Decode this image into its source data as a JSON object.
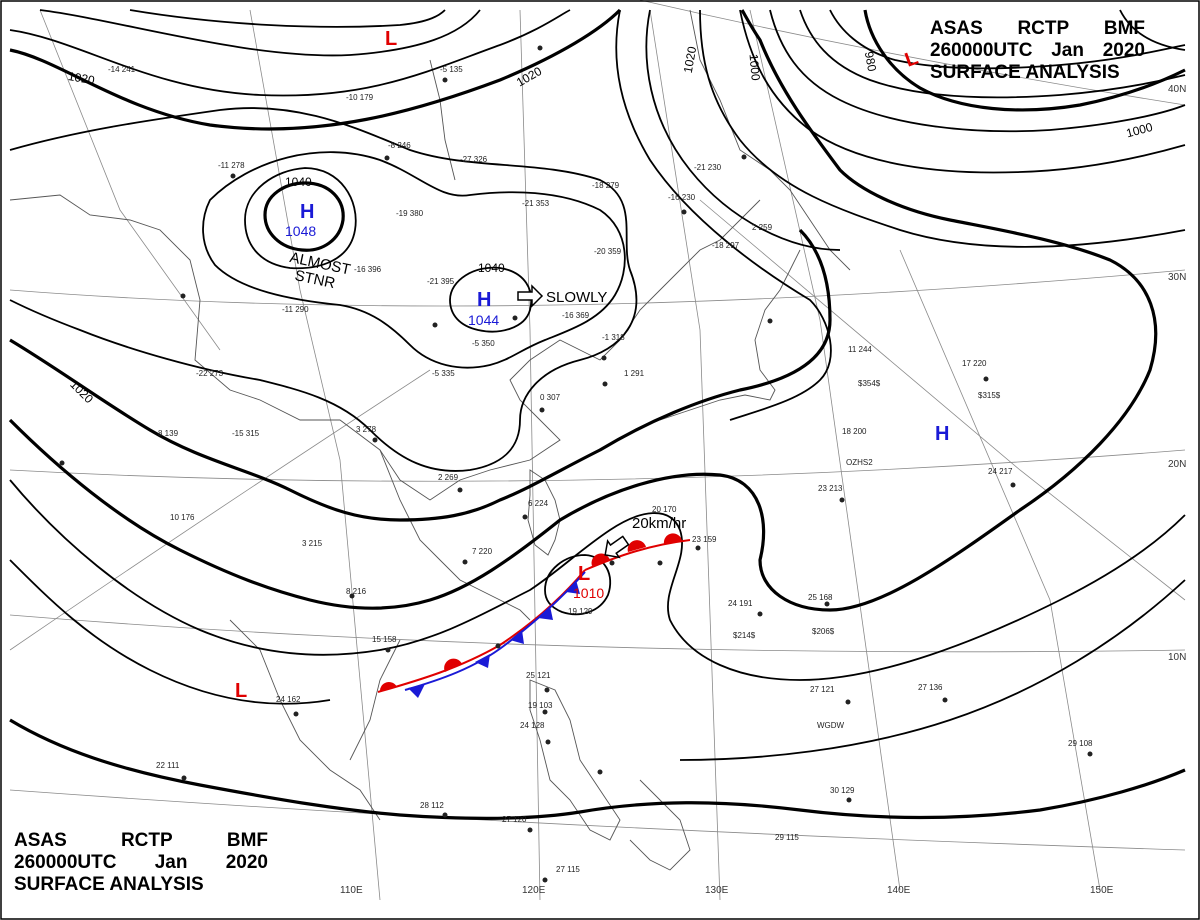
{
  "header": {
    "agency_line": [
      "ASAS",
      "RCTP",
      "BMF"
    ],
    "time_line": [
      "260000UTC",
      "Jan",
      "2020"
    ],
    "title_line": "SURFACE ANALYSIS"
  },
  "pressure_centers": [
    {
      "type": "H",
      "value": "1048",
      "color": "#1a1ad6",
      "note": "ALMOST STNR"
    },
    {
      "type": "H",
      "value": "1044",
      "color": "#1a1ad6",
      "motion": "SLOWLY"
    },
    {
      "type": "L",
      "value": "1010",
      "color": "#e00000",
      "motion": "20km/hr"
    },
    {
      "type": "H",
      "value": "",
      "color": "#1a1ad6"
    },
    {
      "type": "L",
      "value": "",
      "color": "#e00000"
    },
    {
      "type": "L",
      "value": "",
      "color": "#e00000"
    },
    {
      "type": "L",
      "value": "",
      "color": "#e00000"
    }
  ],
  "isobar_labels": [
    "1020",
    "1020",
    "1020",
    "1020",
    "1040",
    "1040",
    "1000",
    "1000",
    "980"
  ],
  "lat_labels": [
    "40N",
    "30N",
    "20N",
    "10N"
  ],
  "lon_labels": [
    "110E",
    "120E",
    "130E",
    "140E",
    "150E"
  ],
  "annotations": {
    "almost_stnr_1": "ALMOST",
    "almost_stnr_2": "STNR",
    "slowly": "SLOWLY",
    "speed": "20km/hr"
  },
  "station_plots": [
    {
      "t": "-14",
      "p": "241"
    },
    {
      "t": "-5",
      "p": "135"
    },
    {
      "t": "-10",
      "p": "179"
    },
    {
      "t": "-8",
      "p": "246"
    },
    {
      "t": "-27",
      "p": "326"
    },
    {
      "t": "-11",
      "p": "278"
    },
    {
      "t": "-21",
      "p": "353"
    },
    {
      "t": "-18",
      "p": "279"
    },
    {
      "t": "-19",
      "p": "380"
    },
    {
      "t": "-16",
      "p": "396"
    },
    {
      "t": "-20",
      "p": "359"
    },
    {
      "t": "-21",
      "p": "395"
    },
    {
      "t": "-11",
      "p": "290"
    },
    {
      "t": "-5",
      "p": "350"
    },
    {
      "t": "-16",
      "p": "369"
    },
    {
      "t": "-22",
      "p": "273"
    },
    {
      "t": "-5",
      "p": "335"
    },
    {
      "t": "-15",
      "p": "315"
    },
    {
      "t": "-1",
      "p": "318"
    },
    {
      "t": "1",
      "p": "291"
    },
    {
      "t": "0",
      "p": "307"
    },
    {
      "t": "3",
      "p": "278"
    },
    {
      "t": "2",
      "p": "269"
    },
    {
      "t": "8",
      "p": "139"
    },
    {
      "t": "10",
      "p": "176"
    },
    {
      "t": "6",
      "p": "224"
    },
    {
      "t": "7",
      "p": "220"
    },
    {
      "t": "3",
      "p": "215"
    },
    {
      "t": "8",
      "p": "216"
    },
    {
      "t": "15",
      "p": "158"
    },
    {
      "t": "20",
      "p": "170"
    },
    {
      "t": "23",
      "p": "159"
    },
    {
      "t": "19",
      "p": "129"
    },
    {
      "t": "24",
      "p": "191"
    },
    {
      "t": "25",
      "p": "168"
    },
    {
      "t": "23",
      "p": "213"
    },
    {
      "t": "18",
      "p": "200"
    },
    {
      "t": "24",
      "p": "217"
    },
    {
      "t": "11",
      "p": "244"
    },
    {
      "t": "17",
      "p": "220"
    },
    {
      "t": "27",
      "p": "121"
    },
    {
      "t": "27",
      "p": "136"
    },
    {
      "t": "29",
      "p": "108"
    },
    {
      "t": "30",
      "p": "129"
    },
    {
      "t": "29",
      "p": "115"
    },
    {
      "t": "25",
      "p": "121"
    },
    {
      "t": "19",
      "p": "103"
    },
    {
      "t": "24",
      "p": "128"
    },
    {
      "t": "28",
      "p": "112"
    },
    {
      "t": "27",
      "p": "120"
    },
    {
      "t": "27",
      "p": "115"
    },
    {
      "t": "24",
      "p": "162"
    },
    {
      "t": "22",
      "p": "111"
    },
    {
      "t": "-21",
      "p": "230"
    },
    {
      "t": "-16",
      "p": "230"
    },
    {
      "t": "2",
      "p": "259"
    },
    {
      "t": "-18",
      "p": "297"
    }
  ],
  "ship_ids": [
    "OZHS2",
    "WGDW",
    "$354$",
    "$315$",
    "$214$",
    "$206$"
  ]
}
